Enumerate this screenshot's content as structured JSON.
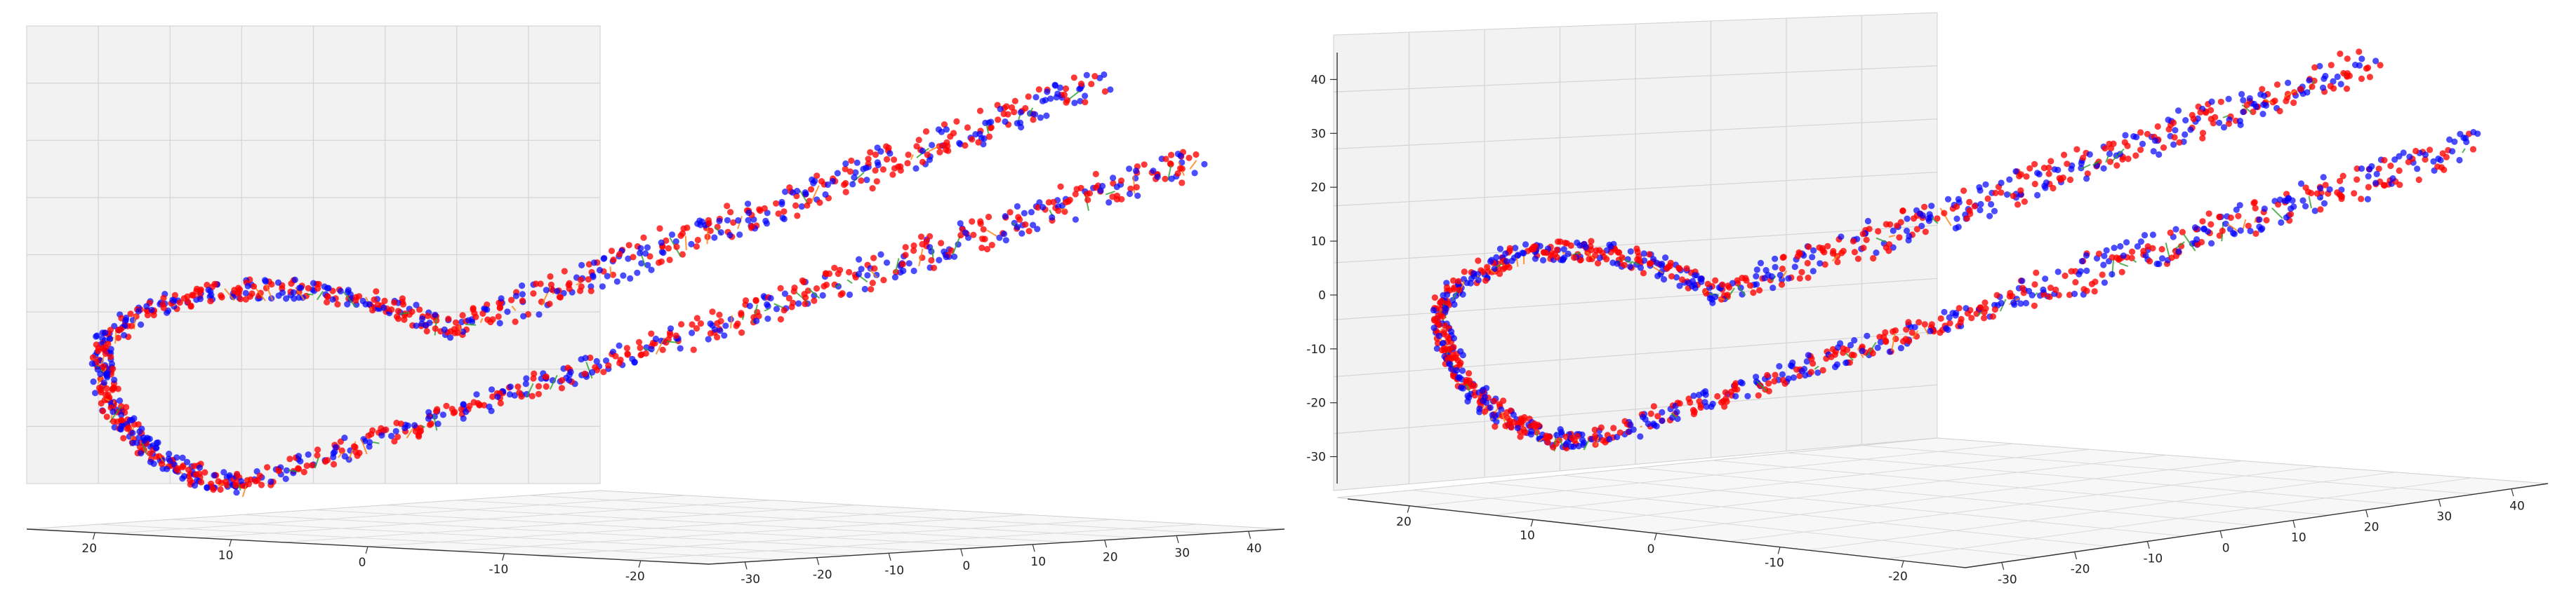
{
  "chart_data": [
    {
      "type": "scatter3d",
      "title": "",
      "view": "panel-left",
      "series": [
        {
          "name": "",
          "color": "#ff0000",
          "marker": "circle"
        },
        {
          "name": "",
          "color": "#0000ff",
          "marker": "circle"
        },
        {
          "name": "",
          "color": "#2ca02c",
          "marker": "line"
        },
        {
          "name": "",
          "color": "#ff7f0e",
          "marker": "line"
        }
      ],
      "shape": "two parallel strands joined by a looping arc",
      "x_ticks": [
        20,
        10,
        0,
        -10,
        -20
      ],
      "y_ticks": [
        -30,
        -20,
        -10,
        0,
        10,
        20,
        30,
        40
      ],
      "z_ticks": [],
      "xlim": [
        -25,
        25
      ],
      "ylim": [
        -35,
        45
      ],
      "zlim": [
        -35,
        45
      ],
      "grid": true
    },
    {
      "type": "scatter3d",
      "title": "",
      "view": "panel-right",
      "series": [
        {
          "name": "",
          "color": "#ff0000",
          "marker": "circle"
        },
        {
          "name": "",
          "color": "#0000ff",
          "marker": "circle"
        },
        {
          "name": "",
          "color": "#2ca02c",
          "marker": "line"
        },
        {
          "name": "",
          "color": "#ff7f0e",
          "marker": "line"
        }
      ],
      "shape": "two parallel strands joined by a looping arc",
      "x_ticks": [
        20,
        10,
        0,
        -10,
        -20
      ],
      "y_ticks": [
        -30,
        -20,
        -10,
        0,
        10,
        20,
        30,
        40
      ],
      "z_ticks": [
        40,
        30,
        20,
        10,
        0,
        -10,
        -20,
        -30
      ],
      "xlim": [
        -25,
        25
      ],
      "ylim": [
        -35,
        45
      ],
      "zlim": [
        -35,
        45
      ],
      "grid": true
    }
  ]
}
